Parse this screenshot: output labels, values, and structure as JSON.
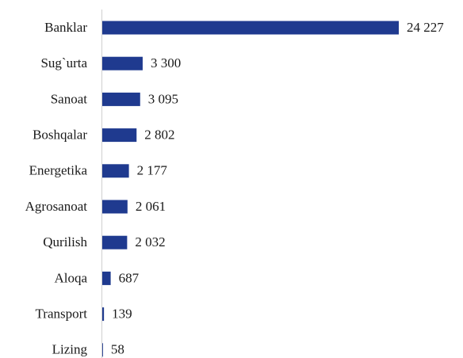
{
  "chart_data": {
    "type": "hbar",
    "categories": [
      "Banklar",
      "Sug`urta",
      "Sanoat",
      "Boshqalar",
      "Energetika",
      "Agrosanoat",
      "Qurilish",
      "Aloqa",
      "Transport",
      "Lizing"
    ],
    "values": [
      24227,
      3300,
      3095,
      2802,
      2177,
      2061,
      2032,
      687,
      139,
      58
    ],
    "value_labels": [
      "24 227",
      "3 300",
      "3 095",
      "2 802",
      "2 177",
      "2 061",
      "2 032",
      "687",
      "139",
      "58"
    ],
    "color": "#1f3a8f"
  }
}
